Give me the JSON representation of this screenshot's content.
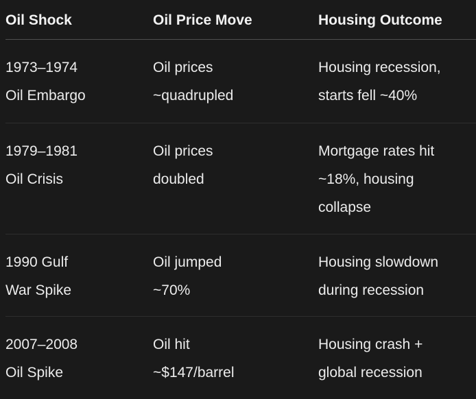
{
  "colors": {
    "background": "#1a1a1a",
    "text": "#ececec",
    "header_text": "#f2f2f2",
    "header_divider": "#4f4f4f",
    "row_divider": "#2e2e2e"
  },
  "table": {
    "columns": [
      {
        "label": "Oil Shock"
      },
      {
        "label": "Oil Price Move"
      },
      {
        "label": "Housing Outcome"
      }
    ],
    "rows": [
      {
        "cells": [
          {
            "lines": [
              "1973–1974",
              "Oil Embargo"
            ]
          },
          {
            "lines": [
              "Oil prices",
              "~quadrupled"
            ]
          },
          {
            "lines": [
              "Housing recession,",
              "starts fell ~40%"
            ]
          }
        ]
      },
      {
        "cells": [
          {
            "lines": [
              "1979–1981",
              "Oil Crisis"
            ]
          },
          {
            "lines": [
              "Oil prices",
              "doubled"
            ]
          },
          {
            "lines": [
              "Mortgage rates hit",
              "~18%, housing",
              "collapse"
            ]
          }
        ]
      },
      {
        "cells": [
          {
            "lines": [
              "1990 Gulf",
              "War Spike"
            ]
          },
          {
            "lines": [
              "Oil jumped",
              "~70%"
            ]
          },
          {
            "lines": [
              "Housing slowdown",
              "during recession"
            ]
          }
        ]
      },
      {
        "cells": [
          {
            "lines": [
              "2007–2008",
              "Oil Spike"
            ]
          },
          {
            "lines": [
              "Oil hit",
              "~$147/barrel"
            ]
          },
          {
            "lines": [
              "Housing crash +",
              "global recession"
            ]
          }
        ]
      }
    ]
  }
}
